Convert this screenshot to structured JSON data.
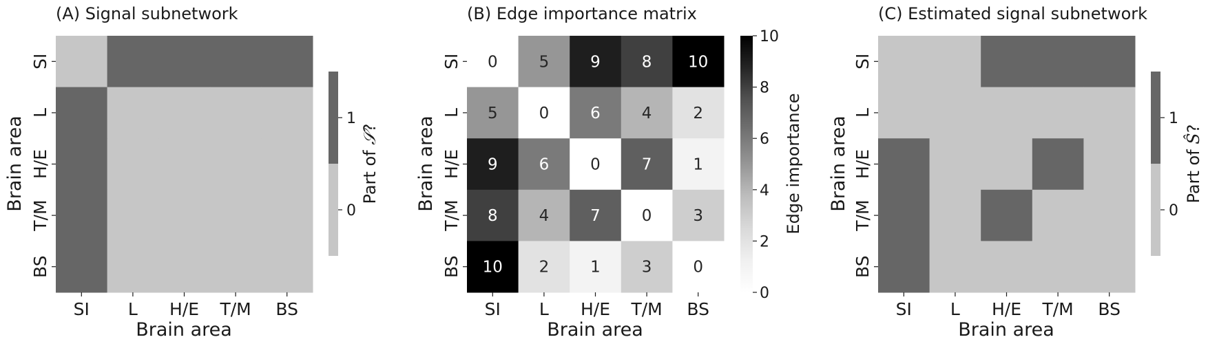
{
  "chart_data": [
    {
      "type": "heatmap",
      "id": "A",
      "title": "(A) Signal subnetwork",
      "xlabel": "Brain area",
      "ylabel": "Brain area",
      "categories": [
        "SI",
        "L",
        "H/E",
        "T/M",
        "BS"
      ],
      "values": [
        [
          0,
          1,
          1,
          1,
          1
        ],
        [
          1,
          0,
          0,
          0,
          0
        ],
        [
          1,
          0,
          0,
          0,
          0
        ],
        [
          1,
          0,
          0,
          0,
          0
        ],
        [
          1,
          0,
          0,
          0,
          0
        ]
      ],
      "annotations": false,
      "colorbar": {
        "label_prefix": "Part of ",
        "label_symbol": "𝒮",
        "label_suffix": "?",
        "ticks": [
          {
            "value": 0,
            "label": "0"
          },
          {
            "value": 1,
            "label": "1"
          }
        ],
        "range": [
          -0.5,
          1.5
        ],
        "colors": [
          "#c6c6c6",
          "#666666"
        ]
      }
    },
    {
      "type": "heatmap",
      "id": "B",
      "title": "(B) Edge importance matrix",
      "xlabel": "Brain area",
      "ylabel": "Brain area",
      "categories": [
        "SI",
        "L",
        "H/E",
        "T/M",
        "BS"
      ],
      "values": [
        [
          0,
          5,
          9,
          8,
          10
        ],
        [
          5,
          0,
          6,
          4,
          2
        ],
        [
          9,
          6,
          0,
          7,
          1
        ],
        [
          8,
          4,
          7,
          0,
          3
        ],
        [
          10,
          2,
          1,
          3,
          0
        ]
      ],
      "annotations": true,
      "colorbar": {
        "label": "Edge importance",
        "ticks": [
          {
            "value": 0,
            "label": "0"
          },
          {
            "value": 2,
            "label": "2"
          },
          {
            "value": 4,
            "label": "4"
          },
          {
            "value": 6,
            "label": "6"
          },
          {
            "value": 8,
            "label": "8"
          },
          {
            "value": 10,
            "label": "10"
          }
        ],
        "range": [
          0,
          10
        ],
        "colormap": "Greys"
      }
    },
    {
      "type": "heatmap",
      "id": "C",
      "title": "(C) Estimated signal subnetwork",
      "xlabel": "Brain area",
      "ylabel": "Brain area",
      "categories": [
        "SI",
        "L",
        "H/E",
        "T/M",
        "BS"
      ],
      "values": [
        [
          0,
          0,
          1,
          1,
          1
        ],
        [
          0,
          0,
          0,
          0,
          0
        ],
        [
          1,
          0,
          0,
          1,
          0
        ],
        [
          1,
          0,
          1,
          0,
          0
        ],
        [
          1,
          0,
          0,
          0,
          0
        ]
      ],
      "annotations": false,
      "colorbar": {
        "label_prefix": "Part of ",
        "label_symbol": "Ŝ",
        "label_suffix": "?",
        "ticks": [
          {
            "value": 0,
            "label": "0"
          },
          {
            "value": 1,
            "label": "1"
          }
        ],
        "range": [
          -0.5,
          1.5
        ],
        "colors": [
          "#c6c6c6",
          "#666666"
        ]
      }
    }
  ]
}
